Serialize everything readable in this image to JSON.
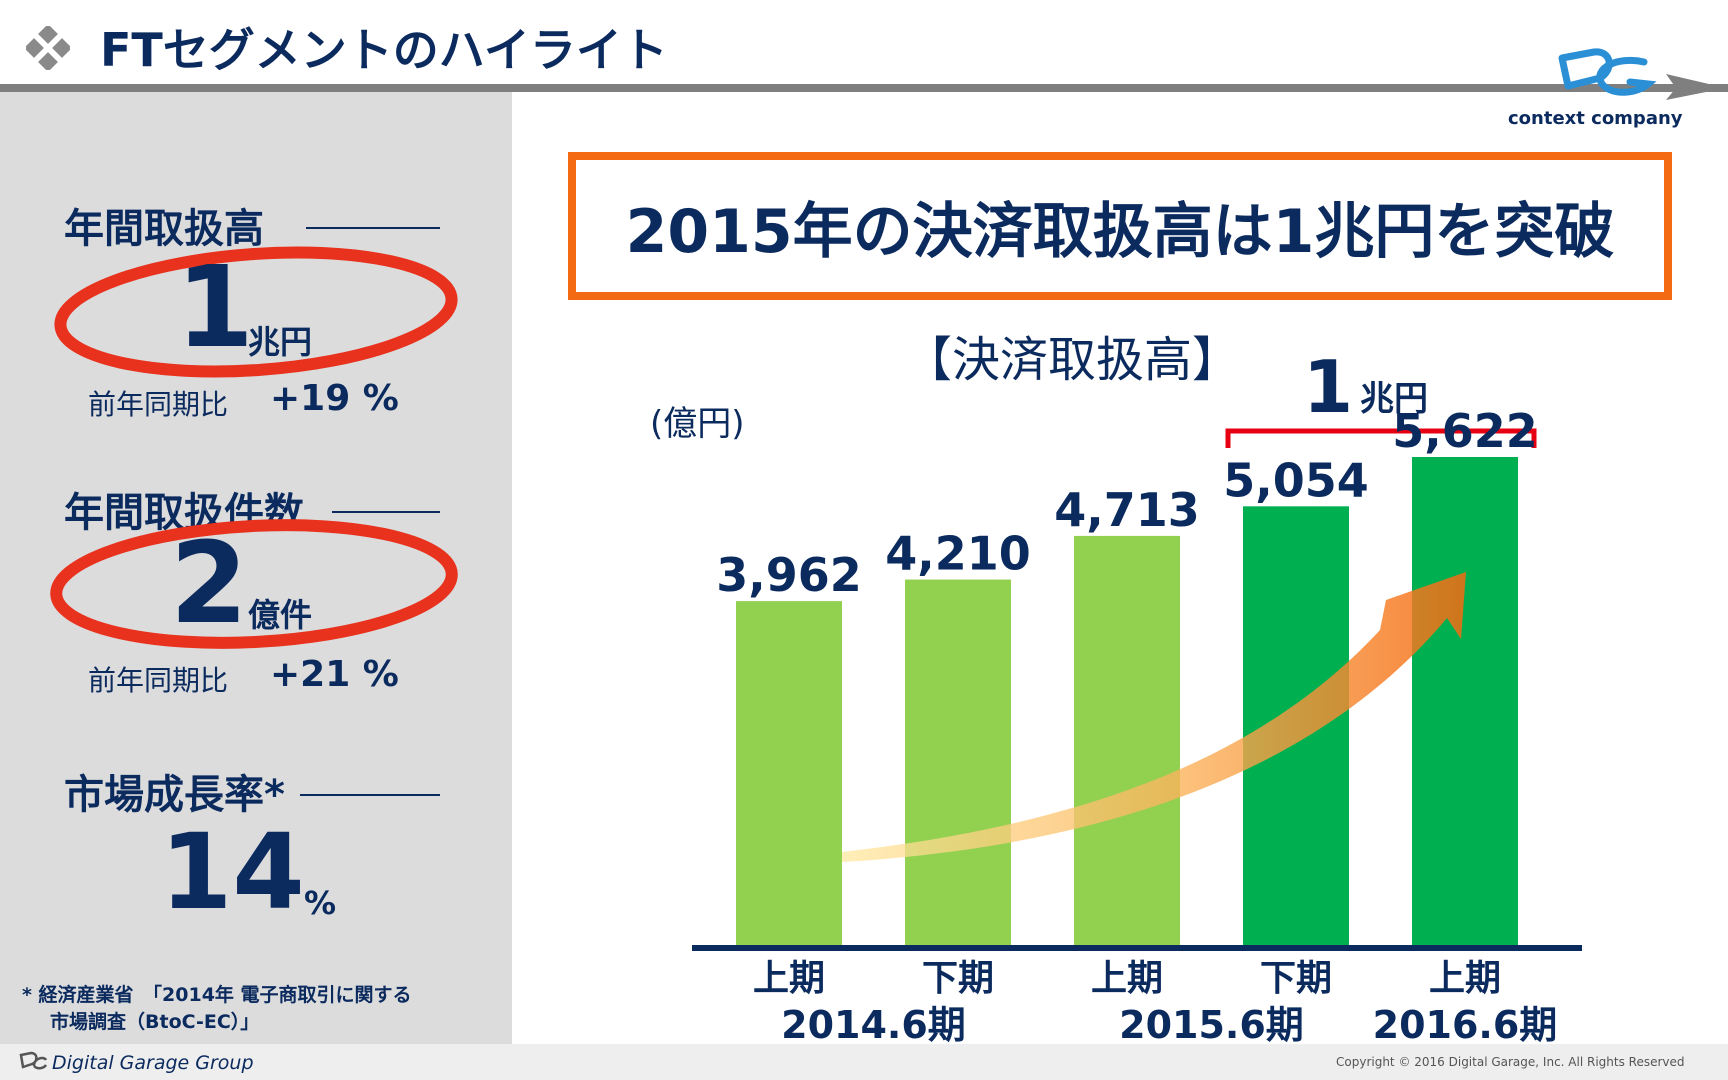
{
  "header": {
    "title": "FTセグメントのハイライト",
    "logo_text": "context company"
  },
  "left_panel": {
    "kpis": [
      {
        "heading": "年間取扱高",
        "value": "1",
        "unit": "兆円",
        "yoy_label": "前年同期比",
        "yoy_value": "+19 %"
      },
      {
        "heading": "年間取扱件数",
        "value": "2",
        "unit": "億件",
        "yoy_label": "前年同期比",
        "yoy_value": "+21 %"
      },
      {
        "heading": "市場成長率*",
        "value": "14",
        "unit": "%"
      }
    ],
    "footnote_line1": "* 経済産業省　「2014年 電子商取引に関する",
    "footnote_line2": "市場調査（BtoC-EC）」"
  },
  "headline": "2015年の決済取扱高は1兆円を突破",
  "bracket_label": {
    "value": "1",
    "unit": "兆円"
  },
  "chart_data": {
    "type": "bar",
    "title": "【決済取扱高】",
    "ylabel": "(億円)",
    "categories": [
      "上期",
      "下期",
      "上期",
      "下期",
      "上期"
    ],
    "fiscal_groups": [
      {
        "label": "2014.6期",
        "bars": [
          0,
          1
        ]
      },
      {
        "label": "2015.6期",
        "bars": [
          2,
          3
        ]
      },
      {
        "label": "2016.6期",
        "bars": [
          4
        ]
      }
    ],
    "values": [
      3962,
      4210,
      4713,
      5054,
      5622
    ],
    "value_labels": [
      "3,962",
      "4,210",
      "4,713",
      "5,054",
      "5,622"
    ],
    "bar_colors": [
      "#92d050",
      "#92d050",
      "#92d050",
      "#00b050",
      "#00b050"
    ],
    "ylim": [
      0,
      6000
    ],
    "grid": false,
    "legend": "none"
  },
  "colors": {
    "navy": "#0b2a5e",
    "accent_orange": "#f46a12",
    "circle_red": "#e8321e",
    "bracket_red": "#e60012",
    "light_green": "#92d050",
    "dark_green": "#00b050",
    "panel_grey": "#dcdcdc"
  },
  "footer": {
    "brand": "Digital Garage Group",
    "copyright": "Copyright © 2016 Digital Garage, Inc. All Rights Reserved"
  }
}
